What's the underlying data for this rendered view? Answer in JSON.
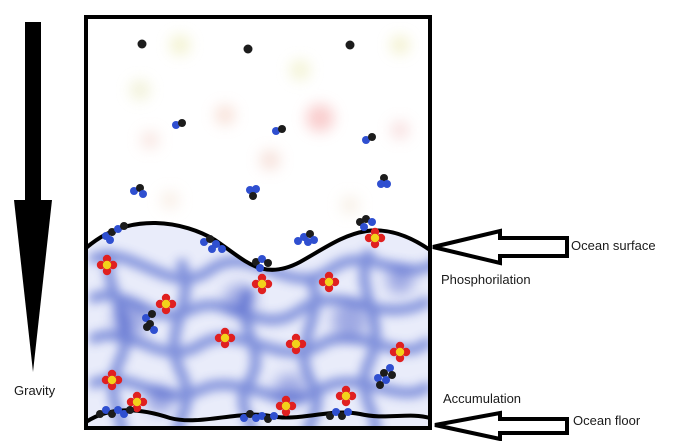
{
  "labels": {
    "gravity": "Gravity",
    "ocean_surface": "Ocean surface",
    "phosphorilation": "Phosphorilation",
    "accumulation": "Accumulation",
    "ocean_floor": "Ocean floor"
  },
  "colors": {
    "outline": "#000000",
    "water": "#4b63c9",
    "molecule_dark": "#1c1c1c",
    "molecule_blue": "#2f4fd0",
    "phosphate_center": "#f2d21b",
    "phosphate_outer": "#e02020"
  },
  "icons": [
    "gravity-arrow-icon",
    "ocean-surface-arrow-icon",
    "ocean-floor-arrow-icon",
    "molecule-icon",
    "phosphate-icon"
  ]
}
